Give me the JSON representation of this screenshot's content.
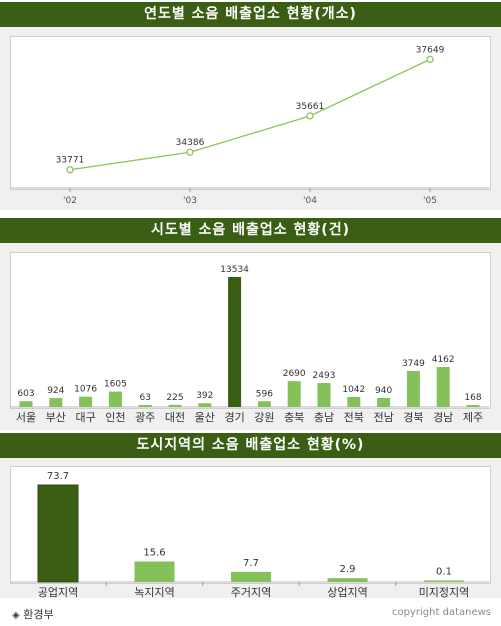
{
  "colors": {
    "banner": "#3a5e14",
    "line": "#8dc65c",
    "bar_light": "#85c15a",
    "bar_dark": "#3a5e14"
  },
  "chart_data": [
    {
      "type": "line",
      "title": "연도별 소음 배출업소 현황(개소)",
      "x": [
        "'02",
        "'03",
        "'04",
        "'05"
      ],
      "values": [
        33771,
        34386,
        35661,
        37649
      ],
      "ylim": [
        33200,
        38400
      ],
      "grid": false
    },
    {
      "type": "bar",
      "title": "시도별 소음 배출업소 현황(건)",
      "categories": [
        "서울",
        "부산",
        "대구",
        "인천",
        "광주",
        "대전",
        "울산",
        "경기",
        "강원",
        "충북",
        "충남",
        "전북",
        "전남",
        "경북",
        "경남",
        "제주"
      ],
      "values": [
        603,
        924,
        1076,
        1605,
        63,
        225,
        392,
        13534,
        596,
        2690,
        2493,
        1042,
        940,
        3749,
        4162,
        168
      ],
      "highlight": "경기",
      "grid": false
    },
    {
      "type": "bar",
      "title": "도시지역의 소음 배출업소 현황(%)",
      "categories": [
        "공업지역",
        "녹지지역",
        "주거지역",
        "상업지역",
        "미지정지역"
      ],
      "values": [
        73.7,
        15.6,
        7.7,
        2.9,
        0.1
      ],
      "highlight": "공업지역",
      "grid": false
    }
  ],
  "footer": {
    "source": "환경부",
    "source_icon": "diamond-icon",
    "copyright": "copyright datanews"
  }
}
